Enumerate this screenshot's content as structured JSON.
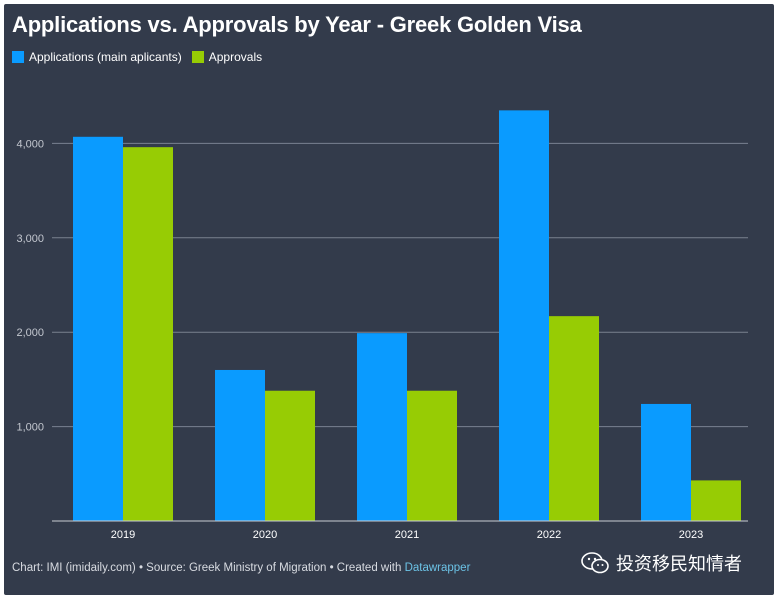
{
  "chart_data": {
    "type": "bar",
    "title": "Applications vs. Approvals by Year - Greek Golden Visa",
    "categories": [
      "2019",
      "2020",
      "2021",
      "2022",
      "2023"
    ],
    "series": [
      {
        "name": "Applications (main aplicants)",
        "color": "#0a9bff",
        "values": [
          4070,
          1600,
          1990,
          4350,
          1240
        ]
      },
      {
        "name": "Approvals",
        "color": "#97cc04",
        "values": [
          3960,
          1380,
          1380,
          2170,
          430
        ]
      }
    ],
    "ylim": [
      0,
      4400
    ],
    "yticks": [
      1000,
      2000,
      3000,
      4000
    ],
    "ytick_labels": [
      "1,000",
      "2,000",
      "3,000",
      "4,000"
    ],
    "xlabel": "",
    "ylabel": "",
    "grid": true,
    "legend": "top-left"
  },
  "footer": {
    "prefix": "Chart: IMI (imidaily.com) • Source: Greek Ministry of Migration • Created with ",
    "link": "Datawrapper"
  },
  "watermark": {
    "text": "投资移民知情者",
    "icon": "wechat-icon"
  }
}
